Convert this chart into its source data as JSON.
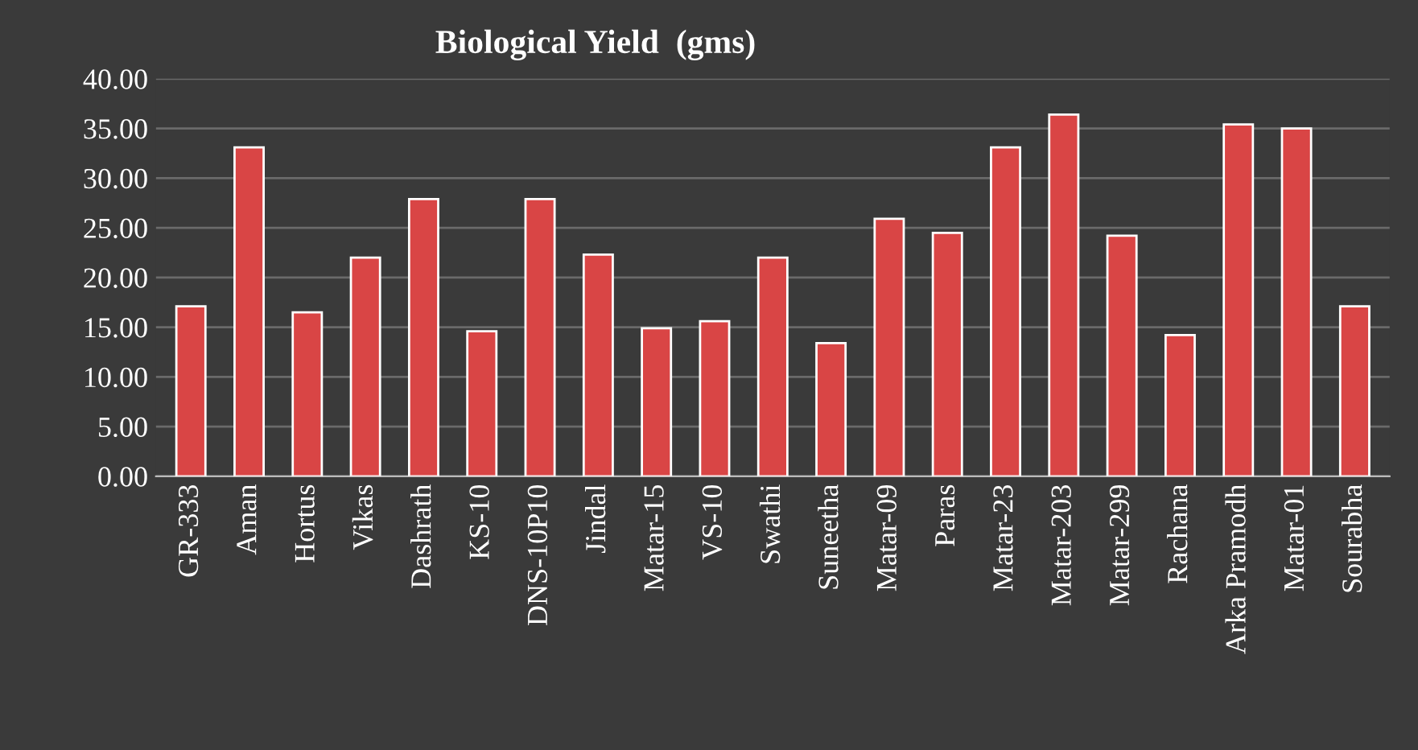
{
  "chart_data": {
    "type": "bar",
    "title": "Biological Yield  (gms)",
    "categories": [
      "GR-333",
      "Aman",
      "Hortus",
      "Vikas",
      "Dashrath",
      "KS-10",
      "DNS-10P10",
      "Jindal",
      "Matar-15",
      "VS-10",
      "Swathi",
      "Suneetha",
      "Matar-09",
      "Paras",
      "Matar-23",
      "Matar-203",
      "Matar-299",
      "Rachana",
      "Arka Pramodh",
      "Matar-01",
      "Sourabha"
    ],
    "values": [
      17.1,
      33.1,
      16.5,
      22.0,
      27.9,
      14.6,
      27.9,
      22.3,
      14.9,
      15.6,
      22.0,
      13.4,
      25.9,
      24.5,
      33.1,
      36.4,
      24.2,
      14.2,
      35.4,
      35.0,
      17.1
    ],
    "color": "#d94545",
    "ylim": [
      0,
      40
    ],
    "yticks": [
      {
        "value": 0,
        "label": "0.00"
      },
      {
        "value": 5,
        "label": "5.00"
      },
      {
        "value": 10,
        "label": "10.00"
      },
      {
        "value": 15,
        "label": "15.00"
      },
      {
        "value": 20,
        "label": "20.00"
      },
      {
        "value": 25,
        "label": "25.00"
      },
      {
        "value": 30,
        "label": "30.00"
      },
      {
        "value": 35,
        "label": "35.00"
      },
      {
        "value": 40,
        "label": "40.00"
      }
    ],
    "grid": "y"
  }
}
